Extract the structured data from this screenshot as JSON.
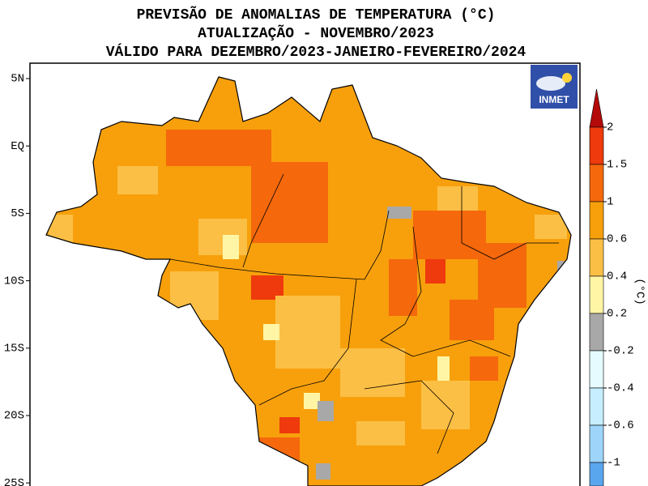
{
  "header": {
    "title_lines": [
      "PREVISÃO DE ANOMALIAS DE TEMPERATURA (°C)",
      "ATUALIZAÇÃO - NOVEMBRO/2023",
      "VÁLIDO PARA DEZEMBRO/2023-JANEIRO-FEVEREIRO/2024"
    ]
  },
  "map": {
    "latitude_labels": [
      "5N",
      "EQ",
      "5S",
      "10S",
      "15S",
      "20S",
      "25S"
    ],
    "logo": "INMET"
  },
  "colorbar": {
    "unit": "(°C)",
    "labels": [
      "2",
      "1.5",
      "1",
      "0.6",
      "0.4",
      "0.2",
      "-0.2",
      "-0.4",
      "-0.6",
      "-1"
    ],
    "colors": [
      "#b40a0a",
      "#ee3a0c",
      "#f5680c",
      "#f7a00c",
      "#fbbf45",
      "#fff5a5",
      "#a8a8a8",
      "#e6fbff",
      "#c6eeff",
      "#9ed4fa",
      "#5aa6ee"
    ]
  }
}
